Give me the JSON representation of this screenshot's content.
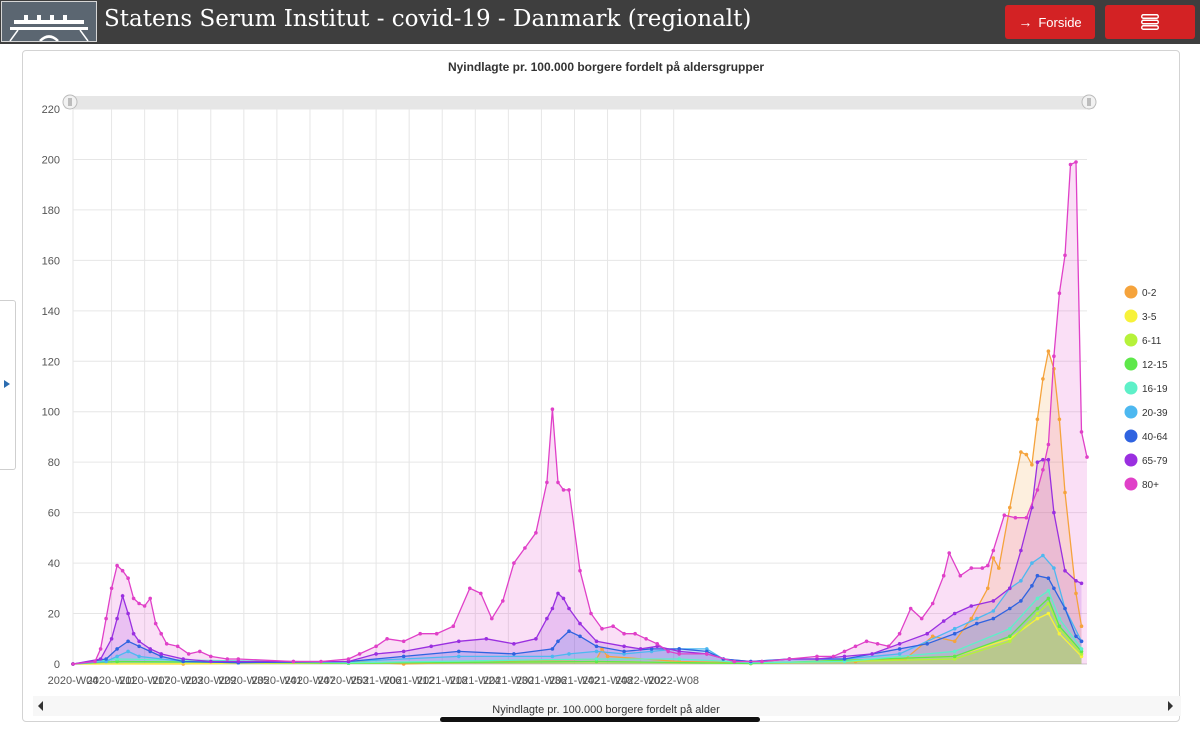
{
  "header": {
    "title": "Statens Serum Institut - covid-19 - Danmark (regionalt)",
    "home_label": "Forside",
    "home_icon": "arrow-right-icon",
    "menu_icon": "hamburger-menu-icon",
    "bar_color": "#3e3e3e",
    "button_color": "#d32224"
  },
  "navigator": {
    "label": "Nyindlagte pr. 100.000 borgere fordelt på alder"
  },
  "chart_data": {
    "type": "area",
    "title": "Nyindlagte pr. 100.000 borgere fordelt på aldersgrupper",
    "xlabel": "",
    "ylabel": "",
    "ylim": [
      0,
      220
    ],
    "yticks": [
      0,
      20,
      40,
      60,
      80,
      100,
      120,
      140,
      160,
      180,
      200,
      220
    ],
    "x_tick_labels": [
      "2020-W04",
      "2020-W11",
      "2020-W17",
      "2020-W23",
      "2020-W29",
      "2020-W35",
      "2020-W41",
      "2020-W47",
      "2020-W53",
      "2021-W06",
      "2021-W12",
      "2021-W18",
      "2021-W24",
      "2021-W30",
      "2021-W36",
      "2021-W42",
      "2021-W48",
      "2022-W02",
      "2022-W08"
    ],
    "grid": true,
    "legend": "right",
    "x_start_week": "2020-W04",
    "series": [
      {
        "name": "0-2",
        "color": "#f5a33c",
        "points": [
          [
            0,
            0
          ],
          [
            20,
            0
          ],
          [
            50,
            1
          ],
          [
            60,
            0
          ],
          [
            95,
            2
          ],
          [
            96,
            6
          ],
          [
            97,
            3
          ],
          [
            110,
            1
          ],
          [
            123,
            0.5
          ],
          [
            142,
            1
          ],
          [
            151,
            2
          ],
          [
            156,
            11
          ],
          [
            160,
            9
          ],
          [
            163,
            18
          ],
          [
            166,
            30
          ],
          [
            167,
            42
          ],
          [
            168,
            38
          ],
          [
            170,
            62
          ],
          [
            172,
            84
          ],
          [
            173,
            83
          ],
          [
            174,
            79
          ],
          [
            175,
            97
          ],
          [
            176,
            113
          ],
          [
            177,
            124
          ],
          [
            178,
            117
          ],
          [
            179,
            97
          ],
          [
            180,
            68
          ],
          [
            182,
            28
          ],
          [
            183,
            15
          ]
        ]
      },
      {
        "name": "3-5",
        "color": "#f7f23a",
        "points": [
          [
            0,
            0
          ],
          [
            50,
            0.3
          ],
          [
            95,
            1
          ],
          [
            123,
            0.2
          ],
          [
            160,
            3
          ],
          [
            170,
            10
          ],
          [
            175,
            18
          ],
          [
            177,
            20
          ],
          [
            179,
            12
          ],
          [
            183,
            3
          ]
        ]
      },
      {
        "name": "6-11",
        "color": "#b6f23a",
        "points": [
          [
            0,
            0
          ],
          [
            8,
            1
          ],
          [
            50,
            0.3
          ],
          [
            95,
            1
          ],
          [
            123,
            0.2
          ],
          [
            160,
            2
          ],
          [
            170,
            9
          ],
          [
            175,
            20
          ],
          [
            177,
            24
          ],
          [
            179,
            14
          ],
          [
            183,
            4
          ]
        ]
      },
      {
        "name": "12-15",
        "color": "#5ee84a",
        "points": [
          [
            0,
            0
          ],
          [
            8,
            1
          ],
          [
            50,
            0.3
          ],
          [
            95,
            1
          ],
          [
            123,
            0.2
          ],
          [
            160,
            3
          ],
          [
            170,
            11
          ],
          [
            175,
            22
          ],
          [
            177,
            26
          ],
          [
            179,
            15
          ],
          [
            183,
            5
          ]
        ]
      },
      {
        "name": "16-19",
        "color": "#5ef0c8",
        "points": [
          [
            0,
            0
          ],
          [
            8,
            2
          ],
          [
            50,
            0.5
          ],
          [
            95,
            2
          ],
          [
            110,
            2
          ],
          [
            123,
            0.5
          ],
          [
            140,
            1
          ],
          [
            160,
            5
          ],
          [
            170,
            14
          ],
          [
            175,
            26
          ],
          [
            177,
            29
          ],
          [
            179,
            18
          ],
          [
            183,
            6
          ]
        ]
      },
      {
        "name": "20-39",
        "color": "#4db8f0",
        "points": [
          [
            0,
            0
          ],
          [
            6,
            1
          ],
          [
            8,
            3
          ],
          [
            10,
            5
          ],
          [
            12,
            3
          ],
          [
            20,
            1
          ],
          [
            30,
            0.5
          ],
          [
            50,
            1
          ],
          [
            70,
            3
          ],
          [
            87,
            3
          ],
          [
            90,
            4
          ],
          [
            95,
            5
          ],
          [
            100,
            4
          ],
          [
            105,
            5
          ],
          [
            110,
            6
          ],
          [
            115,
            6
          ],
          [
            118,
            2
          ],
          [
            123,
            1
          ],
          [
            130,
            2
          ],
          [
            140,
            2
          ],
          [
            150,
            4
          ],
          [
            160,
            14
          ],
          [
            164,
            18
          ],
          [
            167,
            21
          ],
          [
            170,
            30
          ],
          [
            172,
            33
          ],
          [
            174,
            40
          ],
          [
            176,
            43
          ],
          [
            178,
            38
          ],
          [
            180,
            22
          ],
          [
            183,
            9
          ]
        ]
      },
      {
        "name": "40-64",
        "color": "#2f63e0",
        "points": [
          [
            0,
            0
          ],
          [
            6,
            2
          ],
          [
            8,
            6
          ],
          [
            10,
            9
          ],
          [
            12,
            7
          ],
          [
            14,
            5
          ],
          [
            16,
            3
          ],
          [
            20,
            1
          ],
          [
            30,
            0.5
          ],
          [
            50,
            1
          ],
          [
            60,
            3
          ],
          [
            70,
            5
          ],
          [
            80,
            4
          ],
          [
            87,
            6
          ],
          [
            88,
            9
          ],
          [
            90,
            13
          ],
          [
            92,
            11
          ],
          [
            95,
            7
          ],
          [
            100,
            5
          ],
          [
            105,
            6
          ],
          [
            110,
            6
          ],
          [
            115,
            5
          ],
          [
            118,
            2
          ],
          [
            123,
            1
          ],
          [
            130,
            2
          ],
          [
            140,
            2
          ],
          [
            150,
            6
          ],
          [
            155,
            8
          ],
          [
            160,
            12
          ],
          [
            164,
            16
          ],
          [
            167,
            18
          ],
          [
            170,
            22
          ],
          [
            172,
            25
          ],
          [
            174,
            31
          ],
          [
            175,
            35
          ],
          [
            177,
            34
          ],
          [
            178,
            30
          ],
          [
            180,
            22
          ],
          [
            182,
            11
          ],
          [
            183,
            9
          ]
        ]
      },
      {
        "name": "65-79",
        "color": "#9a2fe0",
        "points": [
          [
            0,
            0
          ],
          [
            5,
            2
          ],
          [
            7,
            10
          ],
          [
            8,
            18
          ],
          [
            9,
            27
          ],
          [
            10,
            20
          ],
          [
            11,
            12
          ],
          [
            12,
            9
          ],
          [
            14,
            6
          ],
          [
            16,
            4
          ],
          [
            20,
            2
          ],
          [
            25,
            1
          ],
          [
            30,
            1
          ],
          [
            40,
            1
          ],
          [
            50,
            1
          ],
          [
            55,
            4
          ],
          [
            60,
            5
          ],
          [
            65,
            7
          ],
          [
            70,
            9
          ],
          [
            75,
            10
          ],
          [
            80,
            8
          ],
          [
            84,
            10
          ],
          [
            86,
            18
          ],
          [
            87,
            22
          ],
          [
            88,
            28
          ],
          [
            89,
            26
          ],
          [
            90,
            22
          ],
          [
            92,
            16
          ],
          [
            95,
            9
          ],
          [
            100,
            7
          ],
          [
            103,
            6
          ],
          [
            106,
            7
          ],
          [
            110,
            5
          ],
          [
            115,
            4
          ],
          [
            120,
            1
          ],
          [
            125,
            1
          ],
          [
            130,
            2
          ],
          [
            135,
            2
          ],
          [
            140,
            3
          ],
          [
            145,
            4
          ],
          [
            150,
            8
          ],
          [
            155,
            12
          ],
          [
            158,
            17
          ],
          [
            160,
            20
          ],
          [
            163,
            23
          ],
          [
            167,
            25
          ],
          [
            170,
            30
          ],
          [
            172,
            45
          ],
          [
            174,
            62
          ],
          [
            175,
            80
          ],
          [
            176,
            81
          ],
          [
            177,
            81
          ],
          [
            178,
            60
          ],
          [
            180,
            37
          ],
          [
            182,
            33
          ],
          [
            183,
            32
          ]
        ]
      },
      {
        "name": "80+",
        "color": "#e040c8",
        "points": [
          [
            0,
            0
          ],
          [
            4,
            1
          ],
          [
            5,
            6
          ],
          [
            6,
            18
          ],
          [
            7,
            30
          ],
          [
            8,
            39
          ],
          [
            9,
            37
          ],
          [
            10,
            34
          ],
          [
            11,
            26
          ],
          [
            12,
            24
          ],
          [
            13,
            23
          ],
          [
            14,
            26
          ],
          [
            15,
            16
          ],
          [
            16,
            12
          ],
          [
            17,
            8
          ],
          [
            19,
            7
          ],
          [
            21,
            4
          ],
          [
            23,
            5
          ],
          [
            25,
            3
          ],
          [
            28,
            2
          ],
          [
            30,
            2
          ],
          [
            40,
            1
          ],
          [
            45,
            1
          ],
          [
            50,
            2
          ],
          [
            52,
            4
          ],
          [
            55,
            7
          ],
          [
            57,
            10
          ],
          [
            60,
            9
          ],
          [
            63,
            12
          ],
          [
            66,
            12
          ],
          [
            69,
            15
          ],
          [
            72,
            30
          ],
          [
            74,
            28
          ],
          [
            76,
            18
          ],
          [
            78,
            25
          ],
          [
            80,
            40
          ],
          [
            82,
            46
          ],
          [
            84,
            52
          ],
          [
            86,
            72
          ],
          [
            87,
            101
          ],
          [
            88,
            72
          ],
          [
            89,
            69
          ],
          [
            90,
            69
          ],
          [
            92,
            37
          ],
          [
            94,
            20
          ],
          [
            96,
            14
          ],
          [
            98,
            15
          ],
          [
            100,
            12
          ],
          [
            102,
            12
          ],
          [
            104,
            10
          ],
          [
            106,
            8
          ],
          [
            108,
            5
          ],
          [
            110,
            4
          ],
          [
            115,
            4
          ],
          [
            120,
            1
          ],
          [
            125,
            1
          ],
          [
            130,
            2
          ],
          [
            135,
            3
          ],
          [
            138,
            3
          ],
          [
            140,
            5
          ],
          [
            142,
            7
          ],
          [
            144,
            9
          ],
          [
            146,
            8
          ],
          [
            148,
            7
          ],
          [
            150,
            12
          ],
          [
            152,
            22
          ],
          [
            154,
            18
          ],
          [
            156,
            24
          ],
          [
            158,
            35
          ],
          [
            159,
            44
          ],
          [
            161,
            35
          ],
          [
            163,
            38
          ],
          [
            165,
            38
          ],
          [
            166,
            39
          ],
          [
            167,
            45
          ],
          [
            169,
            59
          ],
          [
            171,
            58
          ],
          [
            173,
            58
          ],
          [
            175,
            69
          ],
          [
            176,
            77
          ],
          [
            177,
            87
          ],
          [
            178,
            122
          ],
          [
            179,
            147
          ],
          [
            180,
            162
          ],
          [
            181,
            198
          ],
          [
            182,
            199
          ],
          [
            183,
            92
          ],
          [
            184,
            82
          ]
        ]
      }
    ]
  }
}
